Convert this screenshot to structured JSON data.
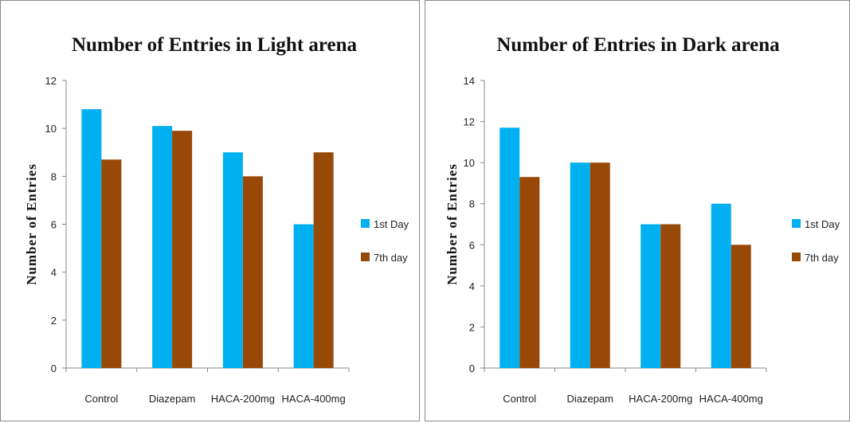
{
  "chart_data": [
    {
      "type": "bar",
      "title": "Number of Entries in Light arena",
      "xlabel": "",
      "ylabel": "Number of Entries",
      "ylim": [
        0,
        12
      ],
      "yticks": [
        0,
        2,
        4,
        6,
        8,
        10,
        12
      ],
      "categories": [
        "Control",
        "Diazepam",
        "HACA-200mg",
        "HACA-400mg"
      ],
      "series": [
        {
          "name": "1st Day",
          "color": "#00b0f0",
          "values": [
            10.8,
            10.1,
            9.0,
            6.0
          ]
        },
        {
          "name": "7th day",
          "color": "#984807",
          "values": [
            8.7,
            9.9,
            8.0,
            9.0
          ]
        }
      ],
      "grid": false,
      "legend": "right"
    },
    {
      "type": "bar",
      "title": "Number of Entries in Dark arena",
      "xlabel": "",
      "ylabel": "Number of Entries",
      "ylim": [
        0,
        14
      ],
      "yticks": [
        0,
        2,
        4,
        6,
        8,
        10,
        12,
        14
      ],
      "categories": [
        "Control",
        "Diazepam",
        "HACA-200mg",
        "HACA-400mg"
      ],
      "series": [
        {
          "name": "1st Day",
          "color": "#00b0f0",
          "values": [
            11.7,
            10.0,
            7.0,
            8.0
          ]
        },
        {
          "name": "7th day",
          "color": "#984807",
          "values": [
            9.3,
            10.0,
            7.0,
            6.0
          ]
        }
      ],
      "grid": false,
      "legend": "right"
    }
  ]
}
